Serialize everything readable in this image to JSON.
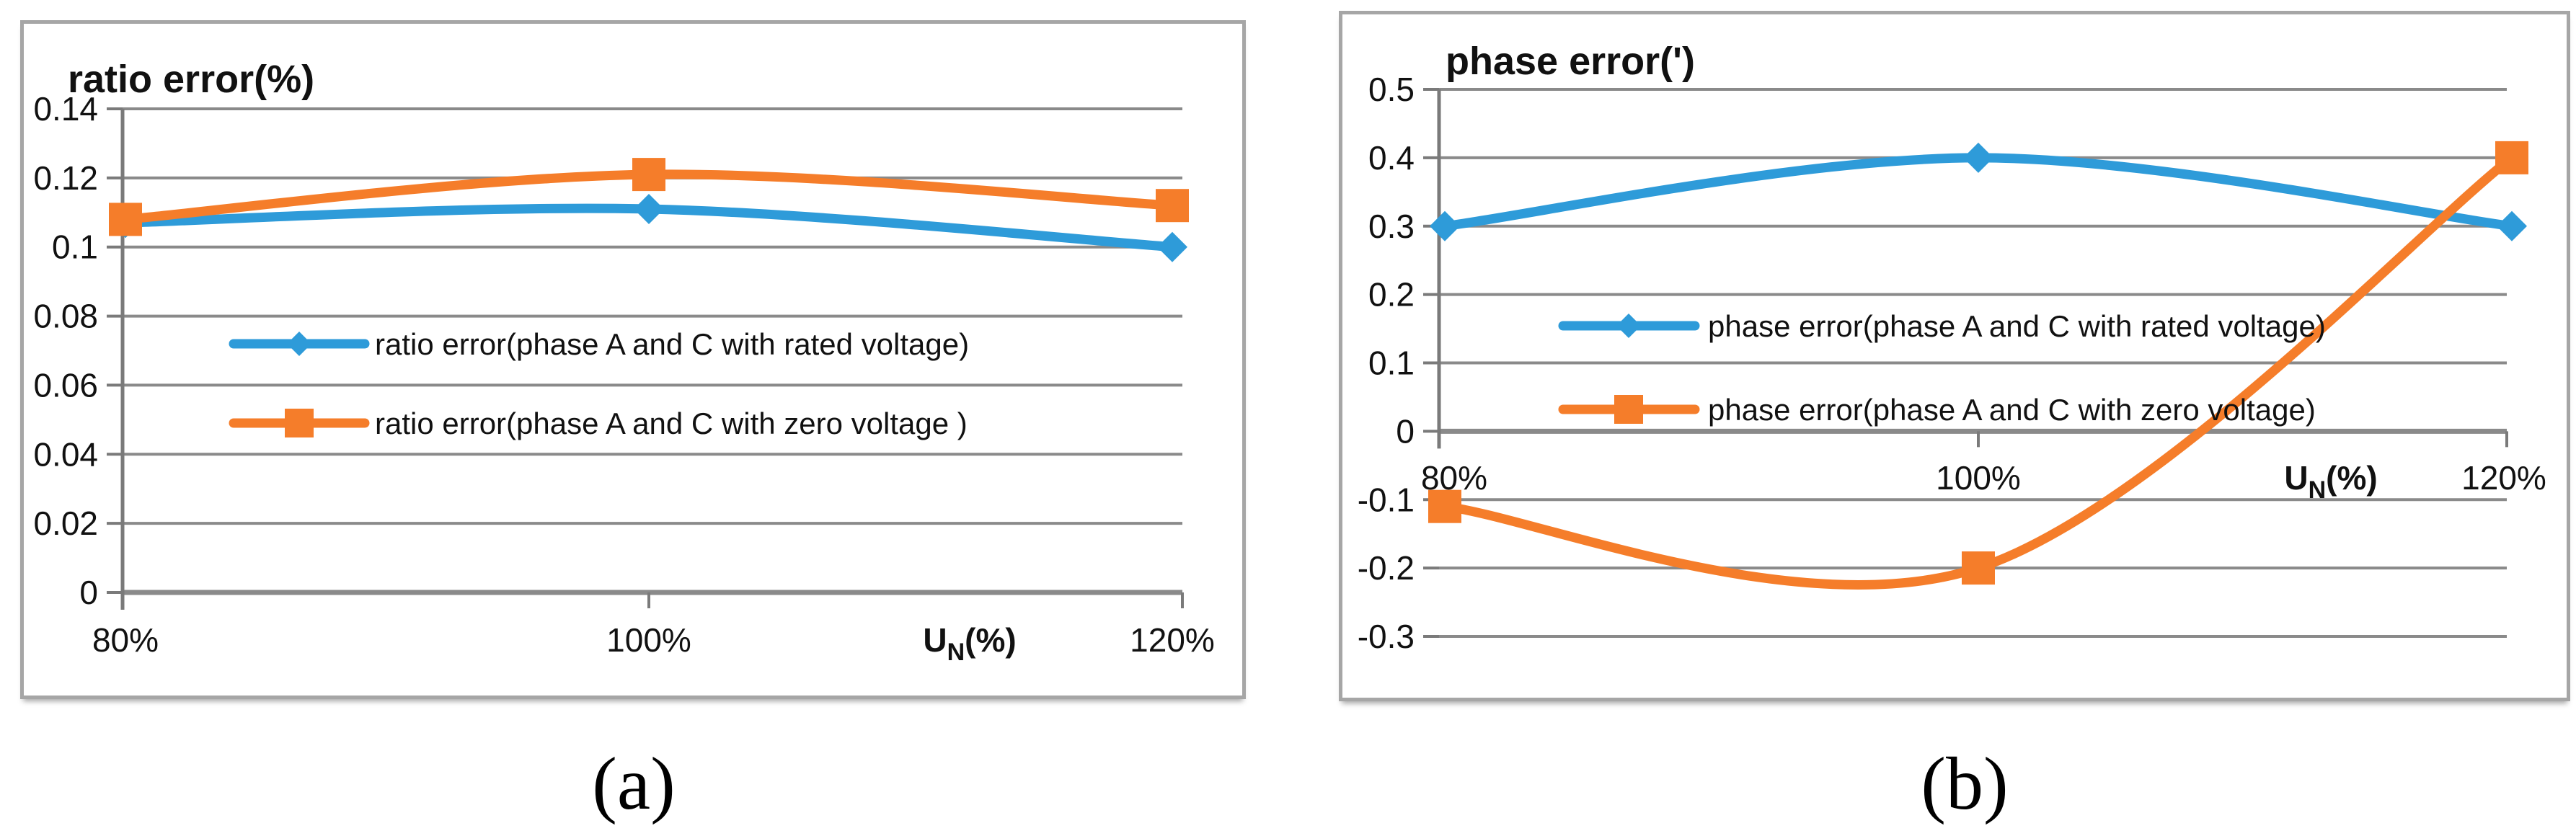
{
  "captions": {
    "a": "(a)",
    "b": "(b)"
  },
  "colors": {
    "series_blue": "#2E9BD9",
    "series_orange": "#F57D2A",
    "gridline": "#8A8A8A",
    "axis": "#7A7A7A",
    "panel_border": "#A6A6A6",
    "text": "#111111",
    "background": "#FFFFFF"
  },
  "chart_data": [
    {
      "id": "a",
      "type": "line",
      "title": "ratio error(%)",
      "categories": [
        "80%",
        "100%",
        "120%"
      ],
      "xlabel": "UN(%)",
      "xlabel_parts": {
        "pre": "U",
        "sub": "N",
        "post": "(%)"
      },
      "ylim": [
        0,
        0.14
      ],
      "ytick_step": 0.02,
      "yticks": [
        "0.14",
        "0.12",
        "0.1",
        "0.08",
        "0.06",
        "0.04",
        "0.02",
        "0"
      ],
      "grid": true,
      "smooth": true,
      "legend_position": "inside-center",
      "series": [
        {
          "name": "ratio error(phase A and C with rated voltage)",
          "color": "blue",
          "marker": "diamond",
          "values": [
            0.107,
            0.111,
            0.1
          ]
        },
        {
          "name": "ratio error(phase A and C with zero voltage )",
          "color": "orange",
          "marker": "square",
          "values": [
            0.108,
            0.121,
            0.112
          ]
        }
      ]
    },
    {
      "id": "b",
      "type": "line",
      "title": "phase error(')",
      "categories": [
        "80%",
        "100%",
        "120%"
      ],
      "xlabel": "UN(%)",
      "xlabel_parts": {
        "pre": "U",
        "sub": "N",
        "post": "(%)"
      },
      "ylim": [
        -0.3,
        0.5
      ],
      "ytick_step": 0.1,
      "yticks": [
        "0.5",
        "0.4",
        "0.3",
        "0.2",
        "0.1",
        "0",
        "-0.1",
        "-0.2",
        "-0.3"
      ],
      "grid": true,
      "smooth": true,
      "legend_position": "inside-center",
      "series": [
        {
          "name": "phase error(phase A and C with rated voltage)",
          "color": "blue",
          "marker": "diamond",
          "values": [
            0.3,
            0.4,
            0.3
          ]
        },
        {
          "name": "phase error(phase A and C with zero voltage)",
          "color": "orange",
          "marker": "square",
          "values": [
            -0.11,
            -0.2,
            0.4
          ]
        }
      ]
    }
  ]
}
